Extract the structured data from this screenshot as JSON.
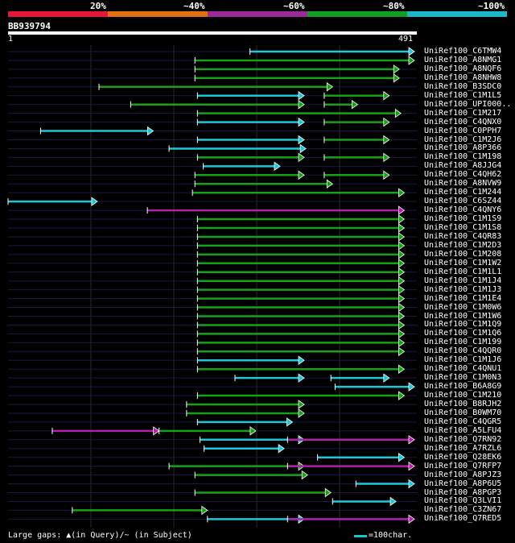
{
  "legend": {
    "segments": [
      {
        "color": "#e8173a"
      },
      {
        "color": "#e07010"
      },
      {
        "color": "#9a2a9a"
      },
      {
        "color": "#10a020"
      },
      {
        "color": "#1ab8c8"
      }
    ],
    "labels": [
      "20%",
      "~40%",
      "~60%",
      "~80%",
      "~100%"
    ]
  },
  "query": {
    "id": "BB939794",
    "start": "1",
    "end": "491",
    "length": 491
  },
  "footer": {
    "gaps_text": "Large gaps: ▲(in Query)/~ (in Subject)",
    "scale_text": "=100char."
  },
  "colors": {
    "cyan": "#1cc8d8",
    "green": "#18a018",
    "magenta": "#b020a8",
    "white": "#ffffff",
    "rowline": "#181848"
  },
  "hits": [
    {
      "name": "UniRef100_C6TMW4",
      "segs": [
        {
          "s": 291,
          "e": 491,
          "c": "cyan"
        }
      ]
    },
    {
      "name": "UniRef100_A8NMG1",
      "segs": [
        {
          "s": 225,
          "e": 491,
          "c": "green"
        }
      ]
    },
    {
      "name": "UniRef100_A8NQF6",
      "segs": [
        {
          "s": 225,
          "e": 470,
          "c": "green"
        }
      ]
    },
    {
      "name": "UniRef100_A8NHW8",
      "segs": [
        {
          "s": 225,
          "e": 470,
          "c": "green"
        }
      ]
    },
    {
      "name": "UniRef100_B3SDC0",
      "segs": [
        {
          "s": 110,
          "e": 390,
          "c": "green"
        }
      ]
    },
    {
      "name": "UniRef100_C1M1L5",
      "segs": [
        {
          "s": 228,
          "e": 356,
          "c": "cyan"
        },
        {
          "s": 380,
          "e": 458,
          "c": "green"
        }
      ]
    },
    {
      "name": "UniRef100_UPI000..",
      "segs": [
        {
          "s": 148,
          "e": 356,
          "c": "green"
        },
        {
          "s": 380,
          "e": 420,
          "c": "green"
        }
      ]
    },
    {
      "name": "UniRef100_C1M217",
      "segs": [
        {
          "s": 228,
          "e": 472,
          "c": "green"
        }
      ]
    },
    {
      "name": "UniRef100_C4QNX0",
      "segs": [
        {
          "s": 228,
          "e": 356,
          "c": "cyan"
        },
        {
          "s": 380,
          "e": 458,
          "c": "green"
        }
      ]
    },
    {
      "name": "UniRef100_C0PPH7",
      "segs": [
        {
          "s": 40,
          "e": 175,
          "c": "cyan"
        }
      ]
    },
    {
      "name": "UniRef100_C1M2J6",
      "segs": [
        {
          "s": 228,
          "e": 356,
          "c": "cyan"
        },
        {
          "s": 380,
          "e": 458,
          "c": "green"
        }
      ]
    },
    {
      "name": "UniRef100_A8P366",
      "segs": [
        {
          "s": 194,
          "e": 358,
          "c": "cyan"
        }
      ]
    },
    {
      "name": "UniRef100_C1M198",
      "segs": [
        {
          "s": 228,
          "e": 356,
          "c": "green"
        },
        {
          "s": 380,
          "e": 458,
          "c": "green"
        }
      ]
    },
    {
      "name": "UniRef100_A8JJG4",
      "segs": [
        {
          "s": 235,
          "e": 327,
          "c": "cyan"
        }
      ]
    },
    {
      "name": "UniRef100_C4QH62",
      "segs": [
        {
          "s": 225,
          "e": 356,
          "c": "green"
        },
        {
          "s": 380,
          "e": 458,
          "c": "green"
        }
      ]
    },
    {
      "name": "UniRef100_A8NVW9",
      "segs": [
        {
          "s": 225,
          "e": 390,
          "c": "green"
        }
      ]
    },
    {
      "name": "UniRef100_C1M244",
      "segs": [
        {
          "s": 222,
          "e": 476,
          "c": "green"
        }
      ]
    },
    {
      "name": "UniRef100_C6SZ44",
      "segs": [
        {
          "s": 1,
          "e": 108,
          "c": "cyan"
        }
      ]
    },
    {
      "name": "UniRef100_C4QNY6",
      "segs": [
        {
          "s": 168,
          "e": 476,
          "c": "magenta"
        }
      ]
    },
    {
      "name": "UniRef100_C1M1S9",
      "segs": [
        {
          "s": 228,
          "e": 476,
          "c": "green"
        }
      ]
    },
    {
      "name": "UniRef100_C1M1S8",
      "segs": [
        {
          "s": 228,
          "e": 476,
          "c": "green"
        }
      ]
    },
    {
      "name": "UniRef100_C4QR83",
      "segs": [
        {
          "s": 228,
          "e": 476,
          "c": "green"
        }
      ]
    },
    {
      "name": "UniRef100_C1M2D3",
      "segs": [
        {
          "s": 228,
          "e": 476,
          "c": "green"
        }
      ]
    },
    {
      "name": "UniRef100_C1M208",
      "segs": [
        {
          "s": 228,
          "e": 476,
          "c": "green"
        }
      ]
    },
    {
      "name": "UniRef100_C1M1W2",
      "segs": [
        {
          "s": 228,
          "e": 476,
          "c": "green"
        }
      ]
    },
    {
      "name": "UniRef100_C1M1L1",
      "segs": [
        {
          "s": 228,
          "e": 476,
          "c": "green"
        }
      ]
    },
    {
      "name": "UniRef100_C1M1J4",
      "segs": [
        {
          "s": 228,
          "e": 476,
          "c": "green"
        }
      ]
    },
    {
      "name": "UniRef100_C1M1J3",
      "segs": [
        {
          "s": 228,
          "e": 476,
          "c": "green"
        }
      ]
    },
    {
      "name": "UniRef100_C1M1E4",
      "segs": [
        {
          "s": 228,
          "e": 476,
          "c": "green"
        }
      ]
    },
    {
      "name": "UniRef100_C1M0W6",
      "segs": [
        {
          "s": 228,
          "e": 476,
          "c": "green"
        }
      ]
    },
    {
      "name": "UniRef100_C1M1W6",
      "segs": [
        {
          "s": 228,
          "e": 476,
          "c": "green"
        }
      ]
    },
    {
      "name": "UniRef100_C1M1Q9",
      "segs": [
        {
          "s": 228,
          "e": 476,
          "c": "green"
        }
      ]
    },
    {
      "name": "UniRef100_C1M1Q6",
      "segs": [
        {
          "s": 228,
          "e": 476,
          "c": "green"
        }
      ]
    },
    {
      "name": "UniRef100_C1M199",
      "segs": [
        {
          "s": 228,
          "e": 476,
          "c": "green"
        }
      ]
    },
    {
      "name": "UniRef100_C4QQR0",
      "segs": [
        {
          "s": 228,
          "e": 476,
          "c": "green"
        }
      ]
    },
    {
      "name": "UniRef100_C1M1J6",
      "segs": [
        {
          "s": 228,
          "e": 356,
          "c": "cyan"
        }
      ]
    },
    {
      "name": "UniRef100_C4QNU1",
      "segs": [
        {
          "s": 228,
          "e": 476,
          "c": "green"
        }
      ]
    },
    {
      "name": "UniRef100_C1M0N3",
      "segs": [
        {
          "s": 273,
          "e": 356,
          "c": "cyan"
        },
        {
          "s": 388,
          "e": 458,
          "c": "cyan"
        }
      ]
    },
    {
      "name": "UniRef100_B6A8G9",
      "segs": [
        {
          "s": 393,
          "e": 497,
          "c": "cyan"
        }
      ]
    },
    {
      "name": "UniRef100_C1M210",
      "segs": [
        {
          "s": 228,
          "e": 476,
          "c": "green"
        }
      ]
    },
    {
      "name": "UniRef100_B8RJH2",
      "segs": [
        {
          "s": 215,
          "e": 356,
          "c": "green"
        }
      ]
    },
    {
      "name": "UniRef100_B0WM70",
      "segs": [
        {
          "s": 215,
          "e": 356,
          "c": "green"
        }
      ]
    },
    {
      "name": "UniRef100_C4QGR5",
      "segs": [
        {
          "s": 228,
          "e": 342,
          "c": "cyan"
        }
      ]
    },
    {
      "name": "UniRef100_A5LFU4",
      "segs": [
        {
          "s": 54,
          "e": 182,
          "c": "magenta"
        },
        {
          "s": 182,
          "e": 298,
          "c": "green"
        }
      ]
    },
    {
      "name": "UniRef100_Q7RN92",
      "segs": [
        {
          "s": 231,
          "e": 356,
          "c": "cyan"
        },
        {
          "s": 336,
          "e": 497,
          "c": "magenta"
        }
      ]
    },
    {
      "name": "UniRef100_A7RZL6",
      "segs": [
        {
          "s": 236,
          "e": 332,
          "c": "cyan"
        }
      ]
    },
    {
      "name": "UniRef100_Q28EK6",
      "segs": [
        {
          "s": 372,
          "e": 476,
          "c": "cyan"
        }
      ]
    },
    {
      "name": "UniRef100_Q7RFP7",
      "segs": [
        {
          "s": 194,
          "e": 356,
          "c": "green"
        },
        {
          "s": 336,
          "e": 497,
          "c": "magenta"
        }
      ]
    },
    {
      "name": "UniRef100_A8PJZ3",
      "segs": [
        {
          "s": 225,
          "e": 360,
          "c": "green"
        }
      ]
    },
    {
      "name": "UniRef100_A8P6U5",
      "segs": [
        {
          "s": 418,
          "e": 497,
          "c": "cyan"
        }
      ]
    },
    {
      "name": "UniRef100_A8PGP3",
      "segs": [
        {
          "s": 225,
          "e": 388,
          "c": "green"
        }
      ]
    },
    {
      "name": "UniRef100_Q3LVI1",
      "segs": [
        {
          "s": 390,
          "e": 466,
          "c": "cyan"
        }
      ]
    },
    {
      "name": "UniRef100_C3ZN67",
      "segs": [
        {
          "s": 78,
          "e": 240,
          "c": "green"
        }
      ]
    },
    {
      "name": "UniRef100_Q7RED5",
      "segs": [
        {
          "s": 240,
          "e": 356,
          "c": "cyan"
        },
        {
          "s": 336,
          "e": 497,
          "c": "magenta"
        }
      ]
    }
  ]
}
